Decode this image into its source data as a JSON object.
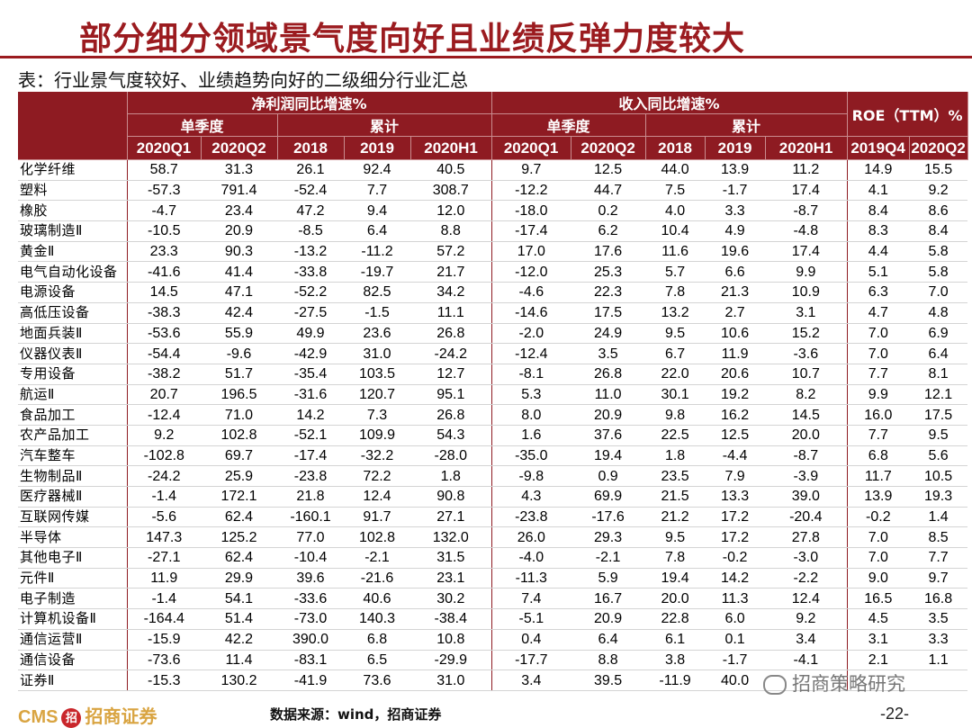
{
  "slide_title": "部分细分领域景气度向好且业绩反弹力度较大",
  "table_caption": "表：行业景气度较好、业绩趋势向好的二级细分行业汇总",
  "header": {
    "group_profit": "净利润同比增速%",
    "group_revenue": "收入同比增速%",
    "group_roe": "ROE（TTM）%",
    "sub_quarter": "单季度",
    "sub_cumulative": "累计",
    "cols": [
      "2020Q1",
      "2020Q2",
      "2018",
      "2019",
      "2020H1",
      "2020Q1",
      "2020Q2",
      "2018",
      "2019",
      "2020H1",
      "2019Q4",
      "2020Q2"
    ]
  },
  "rows": [
    {
      "name": "化学纤维",
      "v": [
        "58.7",
        "31.3",
        "26.1",
        "92.4",
        "40.5",
        "9.7",
        "12.5",
        "44.0",
        "13.9",
        "11.2",
        "14.9",
        "15.5"
      ]
    },
    {
      "name": "塑料",
      "v": [
        "-57.3",
        "791.4",
        "-52.4",
        "7.7",
        "308.7",
        "-12.2",
        "44.7",
        "7.5",
        "-1.7",
        "17.4",
        "4.1",
        "9.2"
      ]
    },
    {
      "name": "橡胶",
      "v": [
        "-4.7",
        "23.4",
        "47.2",
        "9.4",
        "12.0",
        "-18.0",
        "0.2",
        "4.0",
        "3.3",
        "-8.7",
        "8.4",
        "8.6"
      ]
    },
    {
      "name": "玻璃制造Ⅱ",
      "v": [
        "-10.5",
        "20.9",
        "-8.5",
        "6.4",
        "8.8",
        "-17.4",
        "6.2",
        "10.4",
        "4.9",
        "-4.8",
        "8.3",
        "8.4"
      ]
    },
    {
      "name": "黄金Ⅱ",
      "v": [
        "23.3",
        "90.3",
        "-13.2",
        "-11.2",
        "57.2",
        "17.0",
        "17.6",
        "11.6",
        "19.6",
        "17.4",
        "4.4",
        "5.8"
      ]
    },
    {
      "name": "电气自动化设备",
      "v": [
        "-41.6",
        "41.4",
        "-33.8",
        "-19.7",
        "21.7",
        "-12.0",
        "25.3",
        "5.7",
        "6.6",
        "9.9",
        "5.1",
        "5.8"
      ]
    },
    {
      "name": "电源设备",
      "v": [
        "14.5",
        "47.1",
        "-52.2",
        "82.5",
        "34.2",
        "-4.6",
        "22.3",
        "7.8",
        "21.3",
        "10.9",
        "6.3",
        "7.0"
      ]
    },
    {
      "name": "高低压设备",
      "v": [
        "-38.3",
        "42.4",
        "-27.5",
        "-1.5",
        "11.1",
        "-14.6",
        "17.5",
        "13.2",
        "2.7",
        "3.1",
        "4.7",
        "4.8"
      ]
    },
    {
      "name": "地面兵装Ⅱ",
      "v": [
        "-53.6",
        "55.9",
        "49.9",
        "23.6",
        "26.8",
        "-2.0",
        "24.9",
        "9.5",
        "10.6",
        "15.2",
        "7.0",
        "6.9"
      ]
    },
    {
      "name": "仪器仪表Ⅱ",
      "v": [
        "-54.4",
        "-9.6",
        "-42.9",
        "31.0",
        "-24.2",
        "-12.4",
        "3.5",
        "6.7",
        "11.9",
        "-3.6",
        "7.0",
        "6.4"
      ]
    },
    {
      "name": "专用设备",
      "v": [
        "-38.2",
        "51.7",
        "-35.4",
        "103.5",
        "12.7",
        "-8.1",
        "26.8",
        "22.0",
        "20.6",
        "10.7",
        "7.7",
        "8.1"
      ]
    },
    {
      "name": "航运Ⅱ",
      "v": [
        "20.7",
        "196.5",
        "-31.6",
        "120.7",
        "95.1",
        "5.3",
        "11.0",
        "30.1",
        "19.2",
        "8.2",
        "9.9",
        "12.1"
      ]
    },
    {
      "name": "食品加工",
      "v": [
        "-12.4",
        "71.0",
        "14.2",
        "7.3",
        "26.8",
        "8.0",
        "20.9",
        "9.8",
        "16.2",
        "14.5",
        "16.0",
        "17.5"
      ]
    },
    {
      "name": "农产品加工",
      "v": [
        "9.2",
        "102.8",
        "-52.1",
        "109.9",
        "54.3",
        "1.6",
        "37.6",
        "22.5",
        "12.5",
        "20.0",
        "7.7",
        "9.5"
      ]
    },
    {
      "name": "汽车整车",
      "v": [
        "-102.8",
        "69.7",
        "-17.4",
        "-32.2",
        "-28.0",
        "-35.0",
        "19.4",
        "1.8",
        "-4.4",
        "-8.7",
        "6.8",
        "5.6"
      ]
    },
    {
      "name": "生物制品Ⅱ",
      "v": [
        "-24.2",
        "25.9",
        "-23.8",
        "72.2",
        "1.8",
        "-9.8",
        "0.9",
        "23.5",
        "7.9",
        "-3.9",
        "11.7",
        "10.5"
      ]
    },
    {
      "name": "医疗器械Ⅱ",
      "v": [
        "-1.4",
        "172.1",
        "21.8",
        "12.4",
        "90.8",
        "4.3",
        "69.9",
        "21.5",
        "13.3",
        "39.0",
        "13.9",
        "19.3"
      ]
    },
    {
      "name": "互联网传媒",
      "v": [
        "-5.6",
        "62.4",
        "-160.1",
        "91.7",
        "27.1",
        "-23.8",
        "-17.6",
        "21.2",
        "17.2",
        "-20.4",
        "-0.2",
        "1.4"
      ]
    },
    {
      "name": "半导体",
      "v": [
        "147.3",
        "125.2",
        "77.0",
        "102.8",
        "132.0",
        "26.0",
        "29.3",
        "9.5",
        "17.2",
        "27.8",
        "7.0",
        "8.5"
      ]
    },
    {
      "name": "其他电子Ⅱ",
      "v": [
        "-27.1",
        "62.4",
        "-10.4",
        "-2.1",
        "31.5",
        "-4.0",
        "-2.1",
        "7.8",
        "-0.2",
        "-3.0",
        "7.0",
        "7.7"
      ]
    },
    {
      "name": "元件Ⅱ",
      "v": [
        "11.9",
        "29.9",
        "39.6",
        "-21.6",
        "23.1",
        "-11.3",
        "5.9",
        "19.4",
        "14.2",
        "-2.2",
        "9.0",
        "9.7"
      ]
    },
    {
      "name": "电子制造",
      "v": [
        "-1.4",
        "54.1",
        "-33.6",
        "40.6",
        "30.2",
        "7.4",
        "16.7",
        "20.0",
        "11.3",
        "12.4",
        "16.5",
        "16.8"
      ]
    },
    {
      "name": "计算机设备Ⅱ",
      "v": [
        "-164.4",
        "51.4",
        "-73.0",
        "140.3",
        "-38.4",
        "-5.1",
        "20.9",
        "22.8",
        "6.0",
        "9.2",
        "4.5",
        "3.5"
      ]
    },
    {
      "name": "通信运营Ⅱ",
      "v": [
        "-15.9",
        "42.2",
        "390.0",
        "6.8",
        "10.8",
        "0.4",
        "6.4",
        "6.1",
        "0.1",
        "3.4",
        "3.1",
        "3.3"
      ]
    },
    {
      "name": "通信设备",
      "v": [
        "-73.6",
        "11.4",
        "-83.1",
        "6.5",
        "-29.9",
        "-17.7",
        "8.8",
        "3.8",
        "-1.7",
        "-4.1",
        "2.1",
        "1.1"
      ]
    },
    {
      "name": "证券Ⅱ",
      "v": [
        "-15.3",
        "130.2",
        "-41.9",
        "73.6",
        "31.0",
        "3.4",
        "39.5",
        "-11.9",
        "40.0",
        "",
        "",
        ""
      ]
    }
  ],
  "footer": {
    "logo_text": "CMS",
    "logo_badge": "招",
    "logo_cn": "招商证券",
    "source": "数据来源：wind，招商证券",
    "watermark": "招商策略研究",
    "page": "-22-"
  },
  "colors": {
    "accent": "#9b1b1f",
    "header_bg": "#8e1b22"
  }
}
